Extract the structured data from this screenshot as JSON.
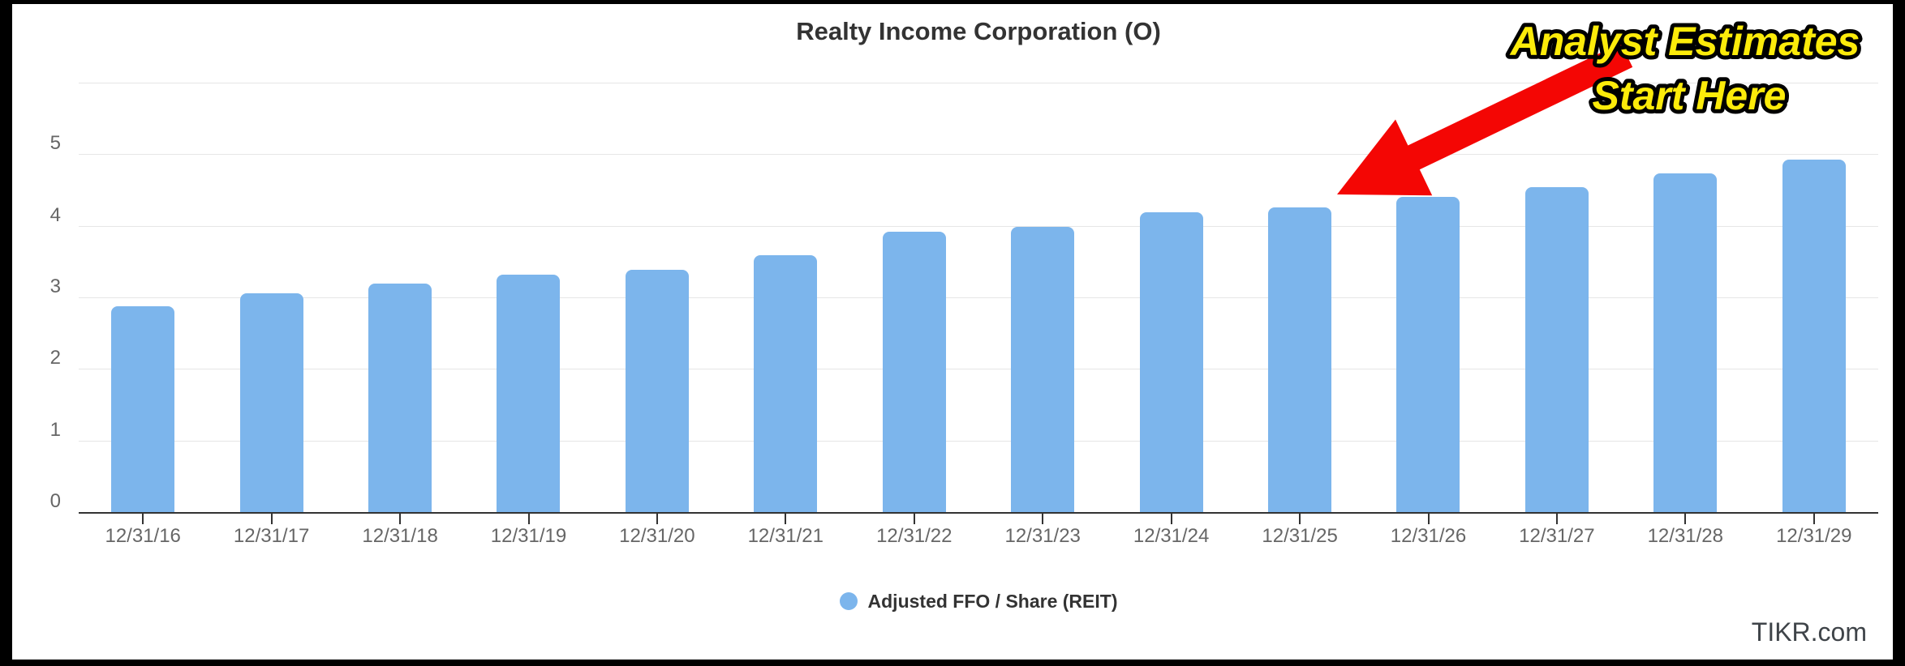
{
  "chart": {
    "title": "Realty Income Corporation (O)",
    "watermark": "TIKR.com"
  },
  "legend": {
    "label": "Adjusted FFO / Share (REIT)",
    "marker_color": "#7cb5ec"
  },
  "annotation": {
    "line1": "Analyst Estimates",
    "line2": "Start Here",
    "text_color": "#fceb0a",
    "outline_color": "#000000",
    "arrow_color": "#f40604",
    "arrow_points_to": "12/31/25"
  },
  "chart_data": {
    "type": "bar",
    "title": "Realty Income Corporation (O)",
    "categories": [
      "12/31/16",
      "12/31/17",
      "12/31/18",
      "12/31/19",
      "12/31/20",
      "12/31/21",
      "12/31/22",
      "12/31/23",
      "12/31/24",
      "12/31/25",
      "12/31/26",
      "12/31/27",
      "12/31/28",
      "12/31/29"
    ],
    "series": [
      {
        "name": "Adjusted FFO / Share (REIT)",
        "values": [
          2.88,
          3.06,
          3.19,
          3.32,
          3.39,
          3.59,
          3.92,
          3.98,
          4.19,
          4.26,
          4.4,
          4.54,
          4.73,
          4.93
        ]
      }
    ],
    "xlabel": "",
    "ylabel": "",
    "ylim": [
      0,
      6
    ],
    "yticks": [
      0,
      1,
      2,
      3,
      4,
      5
    ],
    "grid": true,
    "legend_position": "bottom",
    "bar_color": "#7cb5ec",
    "annotations": [
      "Analyst Estimates Start Here"
    ]
  }
}
